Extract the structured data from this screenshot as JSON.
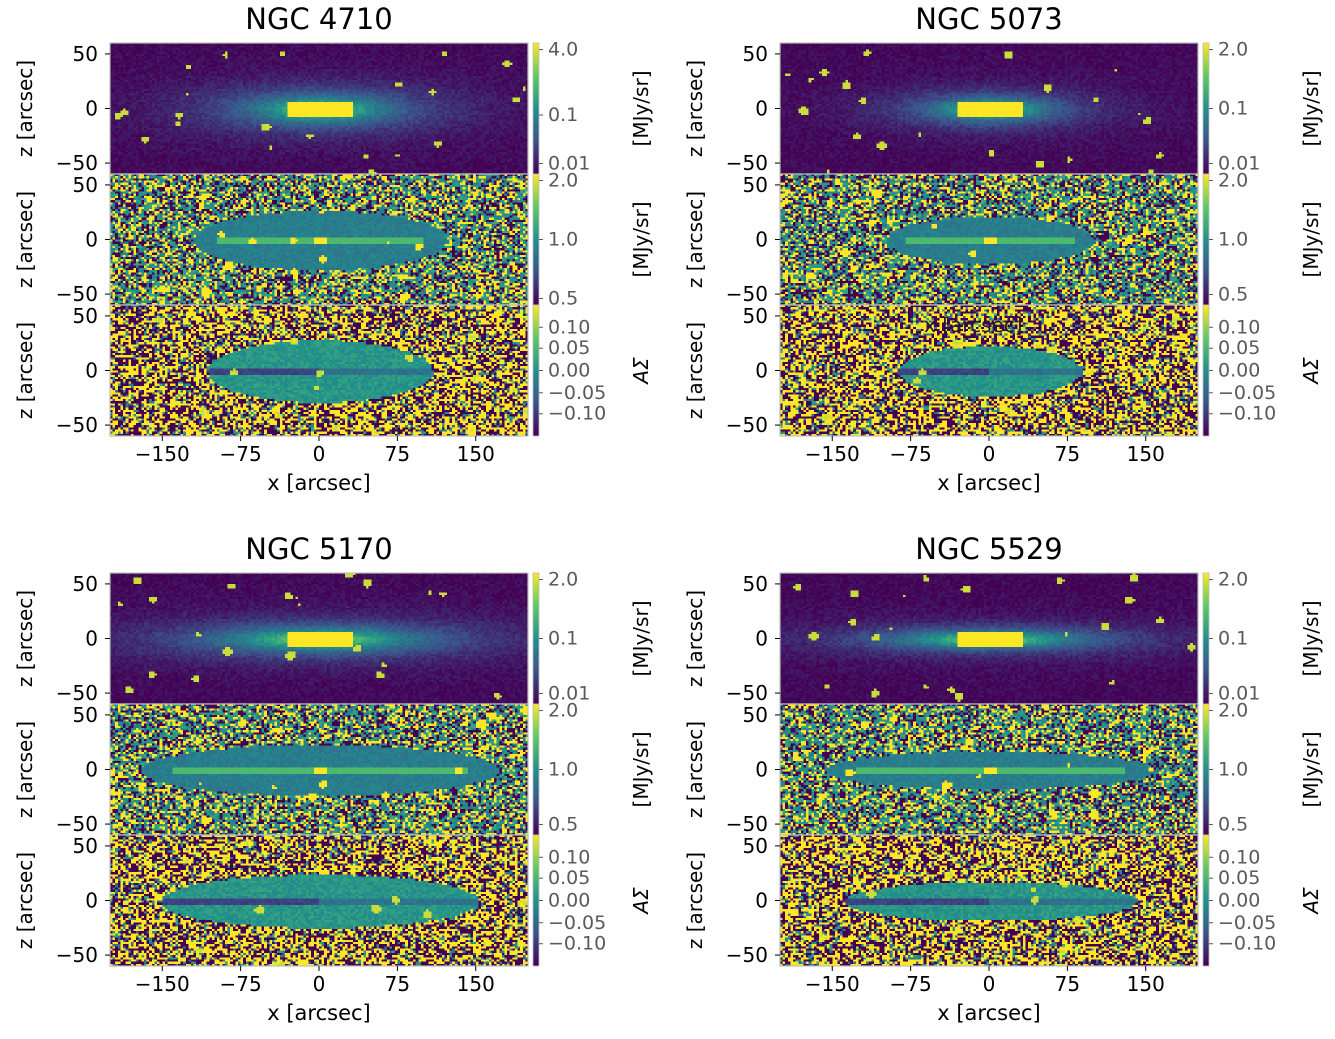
{
  "figure": {
    "colormap": "viridis",
    "colormap_stops": [
      "#440154",
      "#3b528b",
      "#21918c",
      "#5ec962",
      "#fde725"
    ],
    "axis_color": "#bdbdbd",
    "text_color": "#000000",
    "tick_label_color": "#5a5a5a"
  },
  "chart_data": [
    {
      "type": "heatmap",
      "title": "NGC 4710",
      "xlabel": "x [arcsec]",
      "xlim": [
        -200,
        200
      ],
      "xticks": [
        -150,
        -75,
        0,
        75,
        150
      ],
      "xtick_labels": [
        "−150",
        "−75",
        "0",
        "75",
        "150"
      ],
      "rows": [
        {
          "ylabel": "z [arcsec]",
          "ylim": [
            -60,
            60
          ],
          "yticks": [
            50,
            0,
            -50
          ],
          "ytick_labels": [
            "50",
            "0",
            "−50"
          ],
          "cbar_label": "[MJy/sr]",
          "cbar_scale": "log",
          "cbar_ticks": [
            "4.0",
            "0.1",
            "0.01"
          ],
          "cbar_tick_pos": [
            0.05,
            0.55,
            0.92
          ],
          "map": "surface_brightness"
        },
        {
          "ylabel": "z [arcsec]",
          "ylim": [
            -60,
            60
          ],
          "yticks": [
            50,
            0,
            -50
          ],
          "ytick_labels": [
            "50",
            "0",
            "−50"
          ],
          "cbar_label": "[MJy/sr]",
          "cbar_scale": "log",
          "cbar_ticks": [
            "2.0",
            "1.0",
            "0.5"
          ],
          "cbar_tick_pos": [
            0.05,
            0.5,
            0.95
          ],
          "map": "residual"
        },
        {
          "ylabel": "z [arcsec]",
          "ylim": [
            -60,
            60
          ],
          "yticks": [
            50,
            0,
            -50
          ],
          "ytick_labels": [
            "50",
            "0",
            "−50"
          ],
          "cbar_label": "AΣ",
          "cbar_scale": "linear",
          "cbar_ticks": [
            "0.10",
            "0.05",
            "0.00",
            "−0.05",
            "−0.10"
          ],
          "cbar_tick_pos": [
            0.17,
            0.33,
            0.5,
            0.67,
            0.83
          ],
          "map": "asymmetry"
        }
      ]
    },
    {
      "type": "heatmap",
      "title": "NGC 5073",
      "xlabel": "x [arcsec]",
      "annotation": "x [arcsec]",
      "xlim": [
        -200,
        200
      ],
      "xticks": [
        -150,
        -75,
        0,
        75,
        150
      ],
      "xtick_labels": [
        "−150",
        "−75",
        "0",
        "75",
        "150"
      ],
      "rows": [
        {
          "ylabel": "z [arcsec]",
          "ylim": [
            -60,
            60
          ],
          "yticks": [
            50,
            0,
            -50
          ],
          "ytick_labels": [
            "50",
            "0",
            "−50"
          ],
          "cbar_label": "[MJy/sr]",
          "cbar_scale": "log",
          "cbar_ticks": [
            "2.0",
            "0.1",
            "0.01"
          ],
          "cbar_tick_pos": [
            0.05,
            0.5,
            0.92
          ],
          "map": "surface_brightness"
        },
        {
          "ylabel": "z [arcsec]",
          "ylim": [
            -60,
            60
          ],
          "yticks": [
            50,
            0,
            -50
          ],
          "ytick_labels": [
            "50",
            "0",
            "−50"
          ],
          "cbar_label": "[MJy/sr]",
          "cbar_scale": "log",
          "cbar_ticks": [
            "2.0",
            "1.0",
            "0.5"
          ],
          "cbar_tick_pos": [
            0.05,
            0.5,
            0.92
          ],
          "map": "residual"
        },
        {
          "ylabel": "z [arcsec]",
          "ylim": [
            -60,
            60
          ],
          "yticks": [
            50,
            0,
            -50
          ],
          "ytick_labels": [
            "50",
            "0",
            "−50"
          ],
          "cbar_label": "AΣ",
          "cbar_scale": "linear",
          "cbar_ticks": [
            "0.10",
            "0.05",
            "0.00",
            "−0.05",
            "−0.10"
          ],
          "cbar_tick_pos": [
            0.17,
            0.33,
            0.5,
            0.67,
            0.83
          ],
          "map": "asymmetry"
        }
      ]
    },
    {
      "type": "heatmap",
      "title": "NGC 5170",
      "xlabel": "x [arcsec]",
      "xlim": [
        -200,
        200
      ],
      "xticks": [
        -150,
        -75,
        0,
        75,
        150
      ],
      "xtick_labels": [
        "−150",
        "−75",
        "0",
        "75",
        "150"
      ],
      "rows": [
        {
          "ylabel": "z [arcsec]",
          "ylim": [
            -60,
            60
          ],
          "yticks": [
            50,
            0,
            -50
          ],
          "ytick_labels": [
            "50",
            "0",
            "−50"
          ],
          "cbar_label": "[MJy/sr]",
          "cbar_scale": "log",
          "cbar_ticks": [
            "2.0",
            "0.1",
            "0.01"
          ],
          "cbar_tick_pos": [
            0.05,
            0.5,
            0.92
          ],
          "map": "surface_brightness"
        },
        {
          "ylabel": "z [arcsec]",
          "ylim": [
            -60,
            60
          ],
          "yticks": [
            50,
            0,
            -50
          ],
          "ytick_labels": [
            "50",
            "0",
            "−50"
          ],
          "cbar_label": "[MJy/sr]",
          "cbar_scale": "log",
          "cbar_ticks": [
            "2.0",
            "1.0",
            "0.5"
          ],
          "cbar_tick_pos": [
            0.05,
            0.5,
            0.92
          ],
          "map": "residual"
        },
        {
          "ylabel": "z [arcsec]",
          "ylim": [
            -60,
            60
          ],
          "yticks": [
            50,
            0,
            -50
          ],
          "ytick_labels": [
            "50",
            "0",
            "−50"
          ],
          "cbar_label": "AΣ",
          "cbar_scale": "linear",
          "cbar_ticks": [
            "0.10",
            "0.05",
            "0.00",
            "−0.05",
            "−0.10"
          ],
          "cbar_tick_pos": [
            0.17,
            0.33,
            0.5,
            0.67,
            0.83
          ],
          "map": "asymmetry"
        }
      ]
    },
    {
      "type": "heatmap",
      "title": "NGC 5529",
      "xlabel": "x [arcsec]",
      "xlim": [
        -200,
        200
      ],
      "xticks": [
        -150,
        -75,
        0,
        75,
        150
      ],
      "xtick_labels": [
        "−150",
        "−75",
        "0",
        "75",
        "150"
      ],
      "rows": [
        {
          "ylabel": "z [arcsec]",
          "ylim": [
            -60,
            60
          ],
          "yticks": [
            50,
            0,
            -50
          ],
          "ytick_labels": [
            "50",
            "0",
            "−50"
          ],
          "cbar_label": "[MJy/sr]",
          "cbar_scale": "log",
          "cbar_ticks": [
            "2.0",
            "0.1",
            "0.01"
          ],
          "cbar_tick_pos": [
            0.05,
            0.5,
            0.92
          ],
          "map": "surface_brightness"
        },
        {
          "ylabel": "z [arcsec]",
          "ylim": [
            -60,
            60
          ],
          "yticks": [
            50,
            0,
            -50
          ],
          "ytick_labels": [
            "50",
            "0",
            "−50"
          ],
          "cbar_label": "[MJy/sr]",
          "cbar_scale": "log",
          "cbar_ticks": [
            "2.0",
            "1.0",
            "0.5"
          ],
          "cbar_tick_pos": [
            0.05,
            0.5,
            0.92
          ],
          "map": "residual"
        },
        {
          "ylabel": "z [arcsec]",
          "ylim": [
            -60,
            60
          ],
          "yticks": [
            50,
            0,
            -50
          ],
          "ytick_labels": [
            "50",
            "0",
            "−50"
          ],
          "cbar_label": "AΣ",
          "cbar_scale": "linear",
          "cbar_ticks": [
            "0.10",
            "0.05",
            "0.00",
            "−0.05",
            "−0.10"
          ],
          "cbar_tick_pos": [
            0.17,
            0.33,
            0.5,
            0.67,
            0.83
          ],
          "map": "asymmetry"
        }
      ]
    }
  ]
}
